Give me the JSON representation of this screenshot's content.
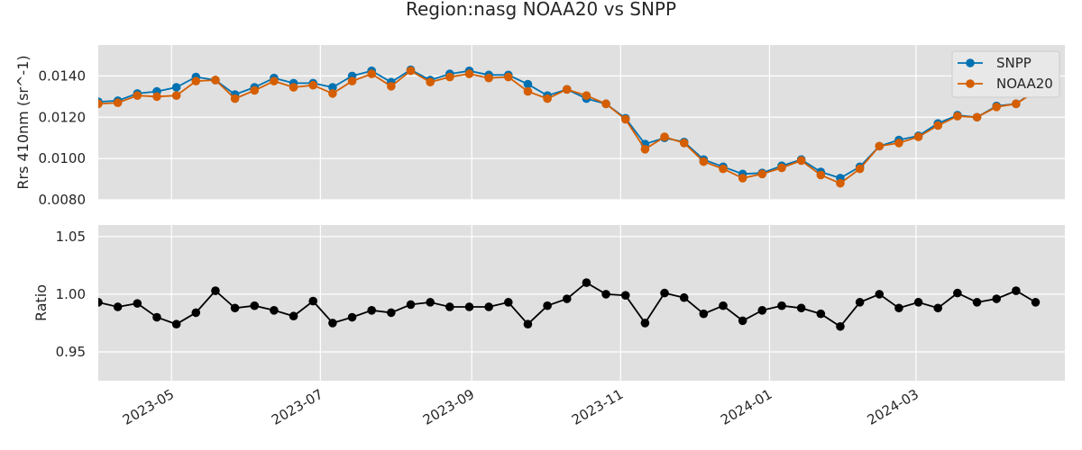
{
  "title": "Region:nasg NOAA20 vs SNPP",
  "colors": {
    "panel_bg": "#e0e0e0",
    "grid": "#ffffff",
    "snpp": "#0072b2",
    "noaa20": "#d55e00",
    "ratio": "#000000"
  },
  "chart_data": [
    {
      "type": "line",
      "ylabel": "Rrs 410nm (sr^-1)",
      "ylim": [
        0.008,
        0.0155
      ],
      "yticks": [
        "0.0080",
        "0.0100",
        "0.0120",
        "0.0140"
      ],
      "xlim": [
        "2023-04-01",
        "2024-05-01"
      ],
      "grid": true,
      "legend_position": "top-right",
      "x": [
        "2023-04-01",
        "2023-04-09",
        "2023-04-17",
        "2023-04-25",
        "2023-05-03",
        "2023-05-11",
        "2023-05-19",
        "2023-05-27",
        "2023-06-04",
        "2023-06-12",
        "2023-06-20",
        "2023-06-28",
        "2023-07-06",
        "2023-07-14",
        "2023-07-22",
        "2023-07-30",
        "2023-08-07",
        "2023-08-15",
        "2023-08-23",
        "2023-08-31",
        "2023-09-08",
        "2023-09-16",
        "2023-09-24",
        "2023-10-02",
        "2023-10-10",
        "2023-10-18",
        "2023-10-26",
        "2023-11-03",
        "2023-11-11",
        "2023-11-19",
        "2023-11-27",
        "2023-12-05",
        "2023-12-13",
        "2023-12-21",
        "2023-12-29",
        "2024-01-06",
        "2024-01-14",
        "2024-01-22",
        "2024-01-30",
        "2024-02-07",
        "2024-02-15",
        "2024-02-23",
        "2024-03-02",
        "2024-03-10",
        "2024-03-18",
        "2024-03-26",
        "2024-04-03",
        "2024-04-11",
        "2024-04-19"
      ],
      "series": [
        {
          "name": "SNPP",
          "values": [
            0.01275,
            0.0128,
            0.01315,
            0.01325,
            0.01345,
            0.01395,
            0.0138,
            0.0131,
            0.01345,
            0.0139,
            0.01365,
            0.01365,
            0.01345,
            0.014,
            0.01425,
            0.0137,
            0.0143,
            0.0138,
            0.0141,
            0.01425,
            0.01405,
            0.01405,
            0.0136,
            0.01305,
            0.01335,
            0.0129,
            0.01265,
            0.01195,
            0.0107,
            0.011,
            0.0108,
            0.00995,
            0.0096,
            0.00925,
            0.0093,
            0.00965,
            0.00995,
            0.00935,
            0.00905,
            0.0096,
            0.0106,
            0.0109,
            0.0111,
            0.0117,
            0.0121,
            0.012,
            0.01255,
            0.01265,
            0.0133
          ]
        },
        {
          "name": "NOAA20",
          "values": [
            0.01265,
            0.0127,
            0.01305,
            0.013,
            0.01305,
            0.01375,
            0.0138,
            0.0129,
            0.0133,
            0.01375,
            0.01345,
            0.01355,
            0.01315,
            0.01375,
            0.0141,
            0.0135,
            0.01425,
            0.0137,
            0.01395,
            0.0141,
            0.0139,
            0.01395,
            0.01325,
            0.0129,
            0.01335,
            0.01305,
            0.01265,
            0.0119,
            0.01045,
            0.01105,
            0.01075,
            0.00985,
            0.0095,
            0.00905,
            0.00925,
            0.00955,
            0.0099,
            0.0092,
            0.0088,
            0.0095,
            0.0106,
            0.01075,
            0.01105,
            0.0116,
            0.01205,
            0.012,
            0.0125,
            0.01265,
            0.01325
          ]
        }
      ]
    },
    {
      "type": "line",
      "ylabel": "Ratio",
      "ylim": [
        0.925,
        1.06
      ],
      "yticks": [
        "0.95",
        "1.00",
        "1.05"
      ],
      "xlim": [
        "2023-04-01",
        "2024-05-01"
      ],
      "xticks": [
        "2023-05",
        "2023-07",
        "2023-09",
        "2023-11",
        "2024-01",
        "2024-03"
      ],
      "grid": true,
      "series": [
        {
          "values": [
            0.993,
            0.989,
            0.992,
            0.98,
            0.974,
            0.984,
            1.003,
            0.988,
            0.99,
            0.986,
            0.981,
            0.994,
            0.975,
            0.98,
            0.986,
            0.984,
            0.991,
            0.993,
            0.989,
            0.989,
            0.989,
            0.993,
            0.974,
            0.99,
            0.996,
            1.01,
            1.0,
            0.999,
            0.975,
            1.001,
            0.997,
            0.983,
            0.99,
            0.977,
            0.986,
            0.99,
            0.988,
            0.983,
            0.972,
            0.993,
            1.0,
            0.988,
            0.993,
            0.988,
            1.001,
            0.993,
            0.996,
            1.003,
            0.993
          ]
        }
      ]
    }
  ]
}
